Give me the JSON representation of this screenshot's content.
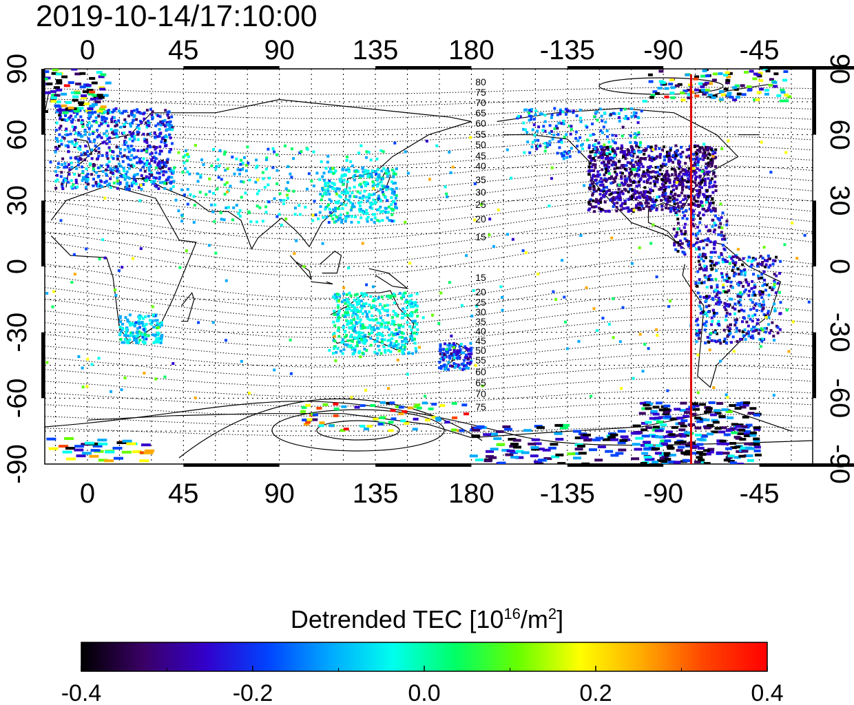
{
  "title": "2019-10-14/17:10:00",
  "map": {
    "top_lon_labels": [
      "0",
      "45",
      "90",
      "135",
      "180",
      "-135",
      "-90",
      "-45"
    ],
    "bottom_lon_labels": [
      "0",
      "45",
      "90",
      "135",
      "180",
      "-135",
      "-90",
      "-45"
    ],
    "left_lat_labels": [
      "90",
      "60",
      "30",
      "0",
      "-30",
      "-60",
      "-90"
    ],
    "right_lat_labels": [
      "90",
      "60",
      "30",
      "0",
      "-30",
      "-60",
      "-90"
    ],
    "terminator_longitude": -77,
    "terminator_color": "#e00000",
    "contour_labels_north": [
      "80",
      "75",
      "70",
      "65",
      "60",
      "55",
      "50",
      "45",
      "40",
      "35",
      "30",
      "25",
      "20",
      "15"
    ],
    "contour_labels_south": [
      "15",
      "20",
      "25",
      "30",
      "35",
      "40",
      "45",
      "50",
      "55",
      "60",
      "65",
      "70",
      "75"
    ]
  },
  "colorbar": {
    "title_main": "Detrended TEC  [10",
    "title_exp": "16",
    "title_unit": "/m",
    "title_exp2": "2",
    "title_end": "]",
    "min": -0.4,
    "max": 0.4,
    "tick_labels": [
      "-0.4",
      "-0.2",
      "0.0",
      "0.2",
      "0.4"
    ],
    "colors": [
      "#000000",
      "#3a0066",
      "#3300cc",
      "#0044ff",
      "#00aaff",
      "#00ffee",
      "#00ff66",
      "#66ff00",
      "#ffff00",
      "#ffaa00",
      "#ff4400",
      "#ff0000"
    ]
  }
}
